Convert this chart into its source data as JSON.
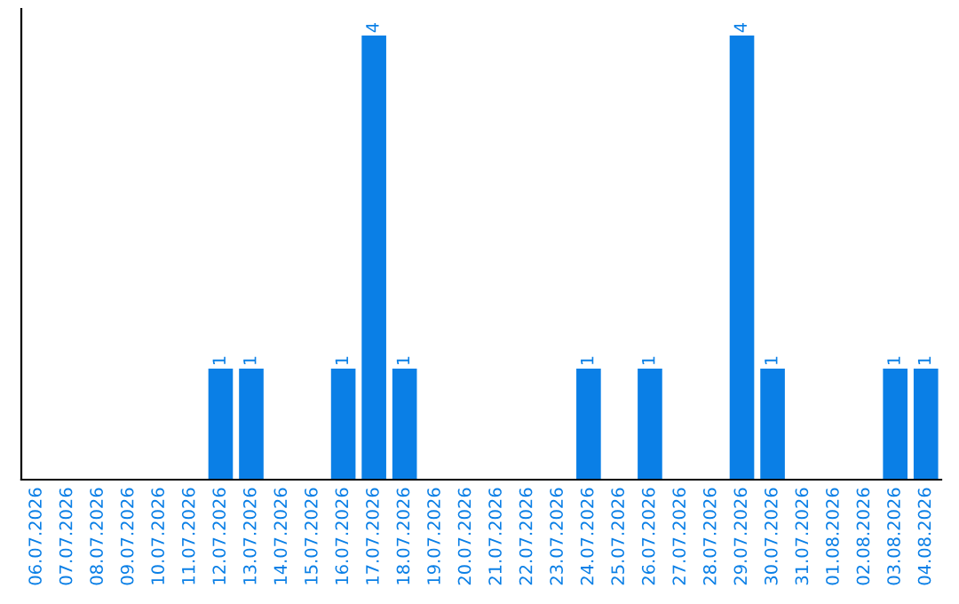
{
  "chart_data": {
    "type": "bar",
    "categories": [
      "06.07.2026",
      "07.07.2026",
      "08.07.2026",
      "09.07.2026",
      "10.07.2026",
      "11.07.2026",
      "12.07.2026",
      "13.07.2026",
      "14.07.2026",
      "15.07.2026",
      "16.07.2026",
      "17.07.2026",
      "18.07.2026",
      "19.07.2026",
      "20.07.2026",
      "21.07.2026",
      "22.07.2026",
      "23.07.2026",
      "24.07.2026",
      "25.07.2026",
      "26.07.2026",
      "27.07.2026",
      "28.07.2026",
      "29.07.2026",
      "30.07.2026",
      "31.07.2026",
      "01.08.2026",
      "02.08.2026",
      "03.08.2026",
      "04.08.2026"
    ],
    "values": [
      0,
      0,
      0,
      0,
      0,
      0,
      1,
      1,
      0,
      0,
      1,
      4,
      1,
      0,
      0,
      0,
      0,
      0,
      1,
      0,
      1,
      0,
      0,
      4,
      1,
      0,
      0,
      0,
      1,
      1
    ],
    "value_labels": [
      null,
      null,
      null,
      null,
      null,
      null,
      "1",
      "1",
      null,
      null,
      "1",
      "4",
      "1",
      null,
      null,
      null,
      null,
      null,
      "1",
      null,
      "1",
      null,
      null,
      "4",
      "1",
      null,
      null,
      null,
      "1",
      "1"
    ],
    "color": "#0a7fe6",
    "ylim": [
      0,
      4.24
    ],
    "tick_labels": "x",
    "grid": false,
    "legend": false
  }
}
